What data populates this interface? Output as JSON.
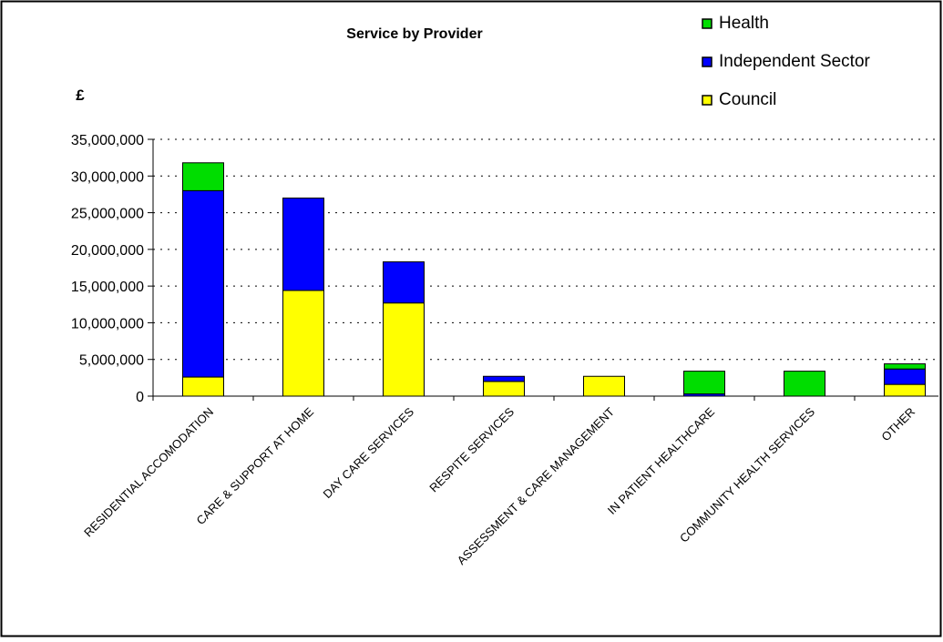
{
  "chart_data": {
    "type": "bar",
    "stacked": true,
    "title": "Service by Provider",
    "ylabel": "£",
    "xlabel": "",
    "ylim": [
      0,
      35000000
    ],
    "yticks": [
      0,
      5000000,
      10000000,
      15000000,
      20000000,
      25000000,
      30000000,
      35000000
    ],
    "ytick_labels": [
      "0",
      "5,000,000",
      "10,000,000",
      "15,000,000",
      "20,000,000",
      "25,000,000",
      "30,000,000",
      "35,000,000"
    ],
    "grid": "horizontal dotted",
    "legend_position": "top-right",
    "categories": [
      "RESIDENTIAL ACCOMODATION",
      "CARE & SUPPORT AT HOME",
      "DAY CARE SERVICES",
      "RESPITE SERVICES",
      "ASSESSMENT & CARE MANAGEMENT",
      "IN PATIENT HEALTHCARE",
      "COMMUNITY HEALTH SERVICES",
      "OTHER"
    ],
    "series": [
      {
        "name": "Council",
        "color": "#ffff00",
        "values": [
          2600000,
          14400000,
          12700000,
          2000000,
          2700000,
          0,
          0,
          1600000
        ]
      },
      {
        "name": "Independent Sector",
        "color": "#0000ff",
        "values": [
          25400000,
          12600000,
          5600000,
          700000,
          0,
          300000,
          0,
          2100000
        ]
      },
      {
        "name": "Health",
        "color": "#00dd00",
        "values": [
          3800000,
          0,
          0,
          0,
          0,
          3100000,
          3400000,
          700000
        ]
      }
    ],
    "legend_order": [
      "Health",
      "Independent Sector",
      "Council"
    ]
  }
}
